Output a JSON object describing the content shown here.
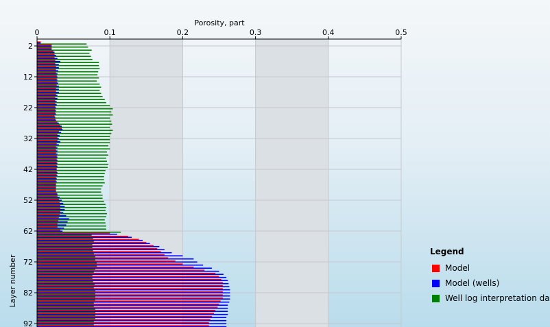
{
  "chart_data": {
    "type": "bar",
    "orientation": "horizontal",
    "title": "",
    "xlabel": "Porosity, part",
    "ylabel": "Layer number",
    "xlim": [
      0,
      0.5
    ],
    "ylim": [
      1,
      94
    ],
    "x_ticks": [
      "0",
      "0.1",
      "0.2",
      "0.3",
      "0.4",
      "0.5"
    ],
    "y_ticks": [
      "2",
      "12",
      "22",
      "32",
      "42",
      "52",
      "62",
      "72",
      "82",
      "92"
    ],
    "shaded_bands": [
      [
        0.1,
        0.2
      ],
      [
        0.3,
        0.4
      ]
    ],
    "grid": true,
    "categories": [
      1,
      2,
      3,
      4,
      5,
      6,
      7,
      8,
      9,
      10,
      11,
      12,
      13,
      14,
      15,
      16,
      17,
      18,
      19,
      20,
      21,
      22,
      23,
      24,
      25,
      26,
      27,
      28,
      29,
      30,
      31,
      32,
      33,
      34,
      35,
      36,
      37,
      38,
      39,
      40,
      41,
      42,
      43,
      44,
      45,
      46,
      47,
      48,
      49,
      50,
      51,
      52,
      53,
      54,
      55,
      56,
      57,
      58,
      59,
      60,
      61,
      62,
      63,
      64,
      65,
      66,
      67,
      68,
      69,
      70,
      71,
      72,
      73,
      74,
      75,
      76,
      77,
      78,
      79,
      80,
      81,
      82,
      83,
      84,
      85,
      86,
      87,
      88,
      89,
      90,
      91,
      92,
      93
    ],
    "series": [
      {
        "name": "Model",
        "color": "#ff0000",
        "values": [
          0.005,
          0.02,
          0.02,
          0.022,
          0.024,
          0.024,
          0.025,
          0.025,
          0.026,
          0.026,
          0.026,
          0.027,
          0.027,
          0.027,
          0.027,
          0.026,
          0.026,
          0.026,
          0.025,
          0.025,
          0.025,
          0.025,
          0.025,
          0.025,
          0.024,
          0.025,
          0.028,
          0.032,
          0.034,
          0.03,
          0.028,
          0.028,
          0.028,
          0.027,
          0.026,
          0.026,
          0.026,
          0.027,
          0.027,
          0.027,
          0.027,
          0.027,
          0.027,
          0.027,
          0.026,
          0.026,
          0.026,
          0.026,
          0.026,
          0.027,
          0.028,
          0.03,
          0.031,
          0.032,
          0.032,
          0.032,
          0.031,
          0.03,
          0.029,
          0.028,
          0.028,
          0.032,
          0.1,
          0.125,
          0.14,
          0.15,
          0.16,
          0.165,
          0.17,
          0.175,
          0.18,
          0.19,
          0.2,
          0.215,
          0.23,
          0.245,
          0.25,
          0.253,
          0.255,
          0.255,
          0.255,
          0.255,
          0.255,
          0.255,
          0.252,
          0.25,
          0.248,
          0.245,
          0.243,
          0.24,
          0.238,
          0.236,
          0.236
        ]
      },
      {
        "name": "Model (wells)",
        "color": "#0000ff",
        "values": [
          0.005,
          0.02,
          0.02,
          0.024,
          0.026,
          0.028,
          0.032,
          0.03,
          0.03,
          0.029,
          0.028,
          0.028,
          0.028,
          0.029,
          0.03,
          0.03,
          0.03,
          0.028,
          0.028,
          0.027,
          0.027,
          0.026,
          0.026,
          0.026,
          0.025,
          0.026,
          0.03,
          0.034,
          0.035,
          0.033,
          0.031,
          0.03,
          0.032,
          0.03,
          0.028,
          0.028,
          0.028,
          0.028,
          0.028,
          0.028,
          0.028,
          0.027,
          0.028,
          0.028,
          0.027,
          0.027,
          0.026,
          0.026,
          0.026,
          0.028,
          0.031,
          0.034,
          0.036,
          0.038,
          0.038,
          0.036,
          0.04,
          0.044,
          0.042,
          0.04,
          0.037,
          0.035,
          0.11,
          0.13,
          0.145,
          0.155,
          0.168,
          0.175,
          0.185,
          0.2,
          0.215,
          0.22,
          0.228,
          0.24,
          0.25,
          0.256,
          0.26,
          0.262,
          0.263,
          0.264,
          0.265,
          0.265,
          0.265,
          0.265,
          0.264,
          0.262,
          0.262,
          0.262,
          0.262,
          0.26,
          0.26,
          0.26,
          0.26
        ]
      },
      {
        "name": "Well log interpretation data",
        "color": "#008000",
        "values": [
          0.068,
          0.07,
          0.075,
          0.072,
          0.074,
          0.076,
          0.085,
          0.085,
          0.086,
          0.084,
          0.083,
          0.085,
          0.082,
          0.086,
          0.088,
          0.086,
          0.088,
          0.09,
          0.093,
          0.095,
          0.1,
          0.104,
          0.102,
          0.104,
          0.1,
          0.102,
          0.103,
          0.1,
          0.104,
          0.102,
          0.1,
          0.1,
          0.1,
          0.098,
          0.1,
          0.096,
          0.098,
          0.095,
          0.096,
          0.098,
          0.097,
          0.094,
          0.093,
          0.092,
          0.092,
          0.093,
          0.09,
          0.088,
          0.088,
          0.09,
          0.09,
          0.092,
          0.094,
          0.095,
          0.094,
          0.096,
          0.095,
          0.093,
          0.094,
          0.095,
          0.095,
          0.115,
          0.075,
          0.077,
          0.078,
          0.076,
          0.076,
          0.077,
          0.078,
          0.08,
          0.08,
          0.082,
          0.082,
          0.08,
          0.078,
          0.076,
          0.076,
          0.077,
          0.079,
          0.078,
          0.08,
          0.08,
          0.08,
          0.08,
          0.078,
          0.078,
          0.08,
          0.08,
          0.08,
          0.08,
          0.078,
          0.078,
          0.078
        ]
      }
    ],
    "legend": {
      "title": "Legend",
      "placement": "bottom-right"
    }
  }
}
